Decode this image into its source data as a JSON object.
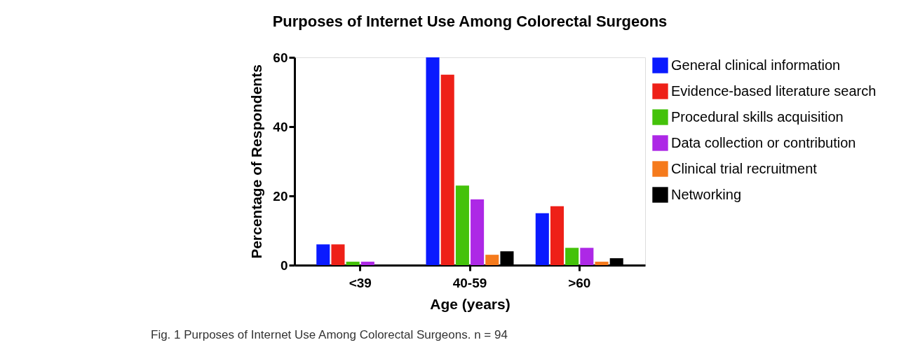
{
  "chart_data": {
    "type": "bar",
    "title": "Purposes of Internet Use Among Colorectal Surgeons",
    "xlabel": "Age (years)",
    "ylabel": "Percentage of Respondents",
    "categories": [
      "<39",
      "40-59",
      ">60"
    ],
    "series": [
      {
        "name": "General clinical information",
        "color": "#0a1aff",
        "values": [
          6,
          60,
          15
        ]
      },
      {
        "name": "Evidence-based literature search",
        "color": "#ee2018",
        "values": [
          6,
          55,
          17
        ]
      },
      {
        "name": "Procedural skills acquisition",
        "color": "#44c20a",
        "values": [
          1,
          23,
          5
        ]
      },
      {
        "name": "Data collection or contribution",
        "color": "#ad28e6",
        "values": [
          1,
          19,
          5
        ]
      },
      {
        "name": "Clinical trial recruitment",
        "color": "#f57a1c",
        "values": [
          0,
          3,
          1
        ]
      },
      {
        "name": "Networking",
        "color": "#000000",
        "values": [
          0,
          4,
          2
        ]
      }
    ],
    "ylim": [
      0,
      60
    ],
    "yticks": [
      0,
      20,
      40,
      60
    ],
    "grid": false,
    "legend": "right",
    "annotations": [
      "Fig. 1 Purposes of Internet Use Among Colorectal Surgeons. n = 94"
    ]
  }
}
